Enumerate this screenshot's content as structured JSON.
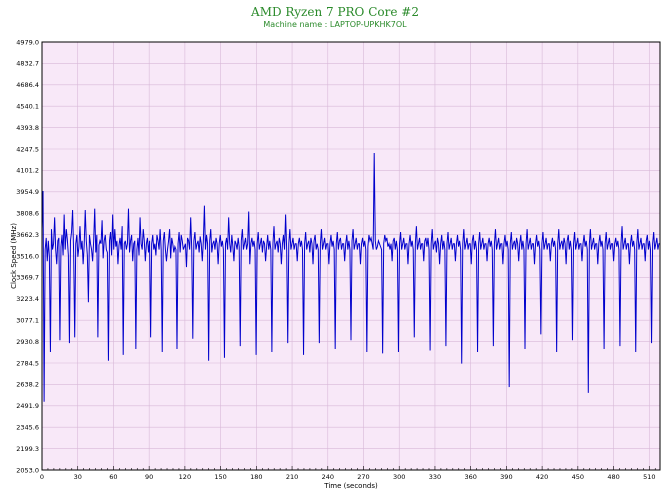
{
  "chart_data": {
    "type": "line",
    "title": "AMD Ryzen 7 PRO Core #2",
    "subtitle": "Machine name : LAPTOP-UPKHK7OL",
    "xlabel": "Time (seconds)",
    "ylabel": "Clock Speed (MHz)",
    "xlim": [
      0,
      519
    ],
    "ylim": [
      2053.0,
      4979.0
    ],
    "x_ticks": [
      "0",
      "30",
      "60",
      "90",
      "120",
      "150",
      "180",
      "210",
      "240",
      "270",
      "300",
      "330",
      "360",
      "390",
      "420",
      "450",
      "480",
      "510"
    ],
    "y_ticks": [
      "4979.0",
      "4832.7",
      "4686.4",
      "4540.1",
      "4393.8",
      "4247.5",
      "4101.2",
      "3954.9",
      "3808.6",
      "3662.3",
      "3516.0",
      "3369.7",
      "3223.4",
      "3077.1",
      "2930.8",
      "2784.5",
      "2638.2",
      "2491.9",
      "2345.6",
      "2199.3",
      "2053.0"
    ],
    "grid": true,
    "colors": {
      "plot_background": "#f8e8f8",
      "grid": "#d8b8d8",
      "series": "#0000cc",
      "title": "#2a8a2a"
    },
    "series": [
      {
        "values": [
          3700,
          3960,
          2520,
          3560,
          3640,
          3480,
          3620,
          3510,
          2860,
          3700,
          3560,
          3600,
          3780,
          3560,
          3460,
          3620,
          3640,
          2940,
          3580,
          3660,
          3520,
          3800,
          3560,
          3700,
          3630,
          3520,
          2920,
          3620,
          3680,
          3830,
          3540,
          2960,
          3600,
          3660,
          3510,
          3580,
          3720,
          3560,
          3620,
          3460,
          3590,
          3830,
          3620,
          3520,
          3200,
          3660,
          3600,
          3560,
          3480,
          3620,
          3840,
          3540,
          3660,
          2960,
          3590,
          3620,
          3600,
          3760,
          3500,
          3620,
          3660,
          3560,
          3540,
          2800,
          3620,
          3680,
          3520,
          3800,
          3560,
          3700,
          3580,
          3620,
          3460,
          3590,
          3640,
          3560,
          3720,
          2840,
          3600,
          3620,
          3560,
          3600,
          3840,
          3540,
          3620,
          3660,
          3480,
          3600,
          3620,
          2880,
          3560,
          3640,
          3520,
          3780,
          3600,
          3560,
          3700,
          3620,
          3480,
          3600,
          3640,
          3540,
          3620,
          2960,
          3600,
          3660,
          3560,
          3600,
          3520,
          3660,
          3620,
          3560,
          3700,
          3560,
          2860,
          3620,
          3680,
          3560,
          3480,
          3560,
          3620,
          3700,
          3500,
          3640,
          3600,
          3540,
          3580,
          3560,
          2880,
          3600,
          3680,
          3540,
          3660,
          3620,
          3560,
          3580,
          3600,
          3440,
          3640,
          3620,
          3560,
          3780,
          3560,
          2950,
          3620,
          3680,
          3560,
          3600,
          3620,
          3540,
          3650,
          3600,
          3480,
          3620,
          3860,
          3560,
          3660,
          3600,
          2800,
          3620,
          3700,
          3540,
          3600,
          3620,
          3560,
          3640,
          3600,
          3460,
          3600,
          3660,
          3580,
          3620,
          3560,
          2820,
          3600,
          3640,
          3560,
          3780,
          3600,
          3540,
          3660,
          3580,
          3480,
          3620,
          3600,
          3560,
          3640,
          3580,
          2900,
          3620,
          3700,
          3560,
          3600,
          3640,
          3560,
          3600,
          3820,
          3460,
          3600,
          3640,
          3580,
          3620,
          3560,
          2840,
          3600,
          3680,
          3560,
          3600,
          3640,
          3540,
          3620,
          3600,
          3480,
          3580,
          3660,
          3560,
          3620,
          3560,
          2860,
          3600,
          3720,
          3560,
          3600,
          3620,
          3540,
          3640,
          3600,
          3460,
          3600,
          3660,
          3560,
          3800,
          3560,
          2920,
          3600,
          3700,
          3560,
          3600,
          3640,
          3560,
          3600,
          3600,
          3480,
          3600,
          3640,
          3580,
          3620,
          3560,
          2840,
          3600,
          3680,
          3560,
          3600,
          3620,
          3540,
          3640,
          3600,
          3460,
          3620,
          3660,
          3560,
          3600,
          3560,
          2920,
          3600,
          3700,
          3560,
          3600,
          3640,
          3560,
          3600,
          3600,
          3460,
          3600,
          3660,
          3580,
          3620,
          3560,
          2880,
          3600,
          3680,
          3560,
          3620,
          3640,
          3560,
          3600,
          3600,
          3480,
          3600,
          3660,
          3560,
          3620,
          3560,
          2940,
          3620,
          3700,
          3560,
          3600,
          3640,
          3560,
          3600,
          3600,
          3460,
          3600,
          3640,
          3580,
          3620,
          3560,
          2860,
          3580,
          3660,
          3620,
          3640,
          3600,
          3560,
          4220,
          3620,
          3560,
          3580,
          3620,
          3600,
          3580,
          3560,
          2850,
          3600,
          3660,
          3620,
          3640,
          3580,
          3600,
          3560,
          3600,
          3480,
          3620,
          3640,
          3560,
          3620,
          3560,
          2860,
          3600,
          3680,
          3560,
          3600,
          3640,
          3560,
          3600,
          3600,
          3460,
          3600,
          3660,
          3580,
          3620,
          3560,
          2960,
          3600,
          3720,
          3560,
          3600,
          3640,
          3560,
          3600,
          3600,
          3480,
          3620,
          3640,
          3580,
          3640,
          3560,
          2870,
          3600,
          3700,
          3560,
          3600,
          3620,
          3540,
          3640,
          3600,
          3460,
          3600,
          3660,
          3560,
          3620,
          3560,
          2900,
          3600,
          3680,
          3560,
          3600,
          3640,
          3560,
          3600,
          3600,
          3480,
          3600,
          3660,
          3580,
          3620,
          3560,
          2780,
          3600,
          3700,
          3560,
          3600,
          3640,
          3560,
          3600,
          3600,
          3460,
          3620,
          3660,
          3560,
          3620,
          3560,
          2860,
          3600,
          3680,
          3560,
          3600,
          3640,
          3560,
          3600,
          3600,
          3480,
          3600,
          3640,
          3580,
          3620,
          3560,
          2900,
          3600,
          3700,
          3560,
          3600,
          3640,
          3560,
          3600,
          3600,
          3460,
          3600,
          3660,
          3580,
          3620,
          3560,
          2620,
          3600,
          3680,
          3560,
          3600,
          3620,
          3560,
          3640,
          3600,
          3480,
          3600,
          3660,
          3560,
          3620,
          3560,
          2880,
          3600,
          3700,
          3560,
          3600,
          3640,
          3560,
          3600,
          3600,
          3460,
          3600,
          3660,
          3580,
          3620,
          3560,
          2980,
          3600,
          3680,
          3560,
          3600,
          3640,
          3560,
          3600,
          3600,
          3480,
          3600,
          3640,
          3580,
          3620,
          3560,
          2860,
          3600,
          3700,
          3560,
          3600,
          3620,
          3560,
          3640,
          3600,
          3460,
          3620,
          3660,
          3560,
          3620,
          3560,
          2940,
          3600,
          3680,
          3560,
          3600,
          3640,
          3560,
          3600,
          3600,
          3480,
          3600,
          3660,
          3580,
          3620,
          3560,
          2580,
          3600,
          3700,
          3560,
          3600,
          3640,
          3560,
          3600,
          3600,
          3460,
          3600,
          3660,
          3580,
          3620,
          3560,
          2880,
          3600,
          3680,
          3560,
          3600,
          3640,
          3560,
          3600,
          3600,
          3480,
          3600,
          3640,
          3580,
          3620,
          3560,
          2900,
          3600,
          3720,
          3560,
          3600,
          3640,
          3560,
          3600,
          3600,
          3460,
          3600,
          3660,
          3580,
          3620,
          3560,
          2860,
          3600,
          3700,
          3560,
          3600,
          3640,
          3560,
          3600,
          3600,
          3480,
          3620,
          3660,
          3560,
          3620,
          3560,
          2920,
          3600,
          3680,
          3560,
          3600,
          3640,
          3560,
          3600,
          3600
        ]
      }
    ]
  }
}
